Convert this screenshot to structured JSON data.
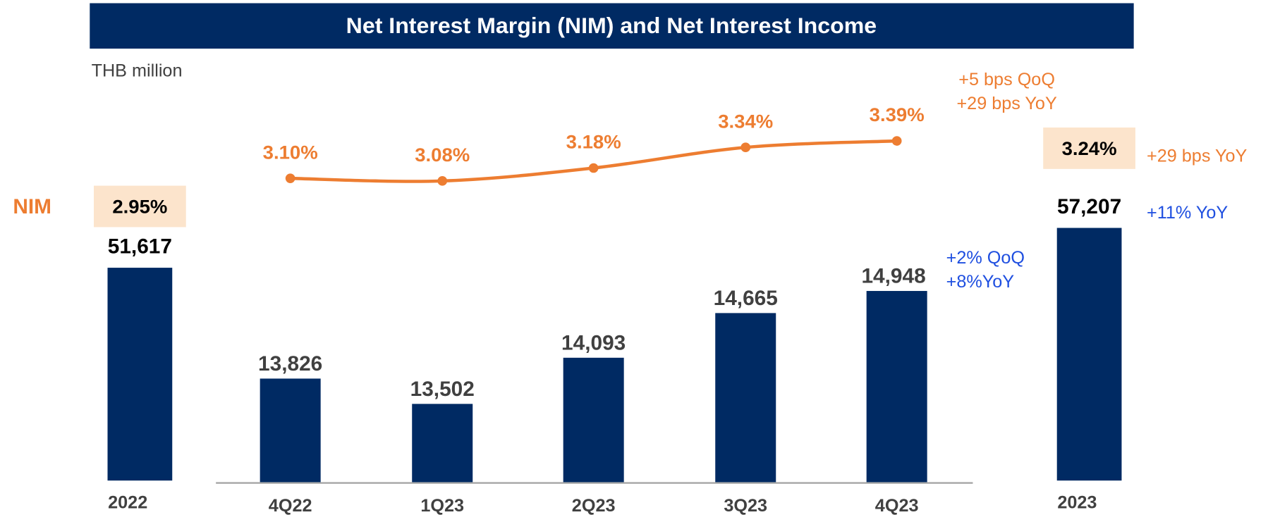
{
  "title": "Net Interest Margin (NIM) and Net Interest Income",
  "unit_label": "THB million",
  "nim_label": "NIM",
  "chart_data": [
    {
      "type": "bar",
      "categories": [
        "2022",
        "2023"
      ],
      "values": [
        51617,
        57207
      ],
      "value_labels": [
        "51,617",
        "57,207"
      ],
      "color": "#002a63",
      "ylim": [
        21750,
        60000
      ],
      "nim": {
        "values": [
          2.95,
          3.24
        ],
        "value_labels": [
          "2.95%",
          "3.24%"
        ],
        "color": "#fce4cc"
      },
      "annotations": [
        "+29 bps YoY",
        "+11% YoY"
      ]
    },
    {
      "type": "bar_line",
      "categories": [
        "4Q22",
        "1Q23",
        "2Q23",
        "3Q23",
        "4Q23"
      ],
      "series": [
        {
          "color": "#002a63",
          "values": [
            13826,
            13502,
            14093,
            14665,
            14948
          ],
          "value_labels": [
            "13,826",
            "13,502",
            "14,093",
            "14,665",
            "14,948"
          ]
        },
        {
          "type": "line",
          "axis": "y2",
          "color": "#ed7d31",
          "values": [
            3.1,
            3.08,
            3.18,
            3.34,
            3.39
          ],
          "value_labels": [
            "3.10%",
            "3.08%",
            "3.18%",
            "3.34%",
            "3.39%"
          ]
        }
      ],
      "ylim": [
        12500,
        15500
      ],
      "y2lim": [
        3.0,
        3.5
      ],
      "annotations": [
        "+5 bps QoQ",
        "+29 bps YoY",
        "+2% QoQ",
        "+8%YoY"
      ]
    }
  ]
}
